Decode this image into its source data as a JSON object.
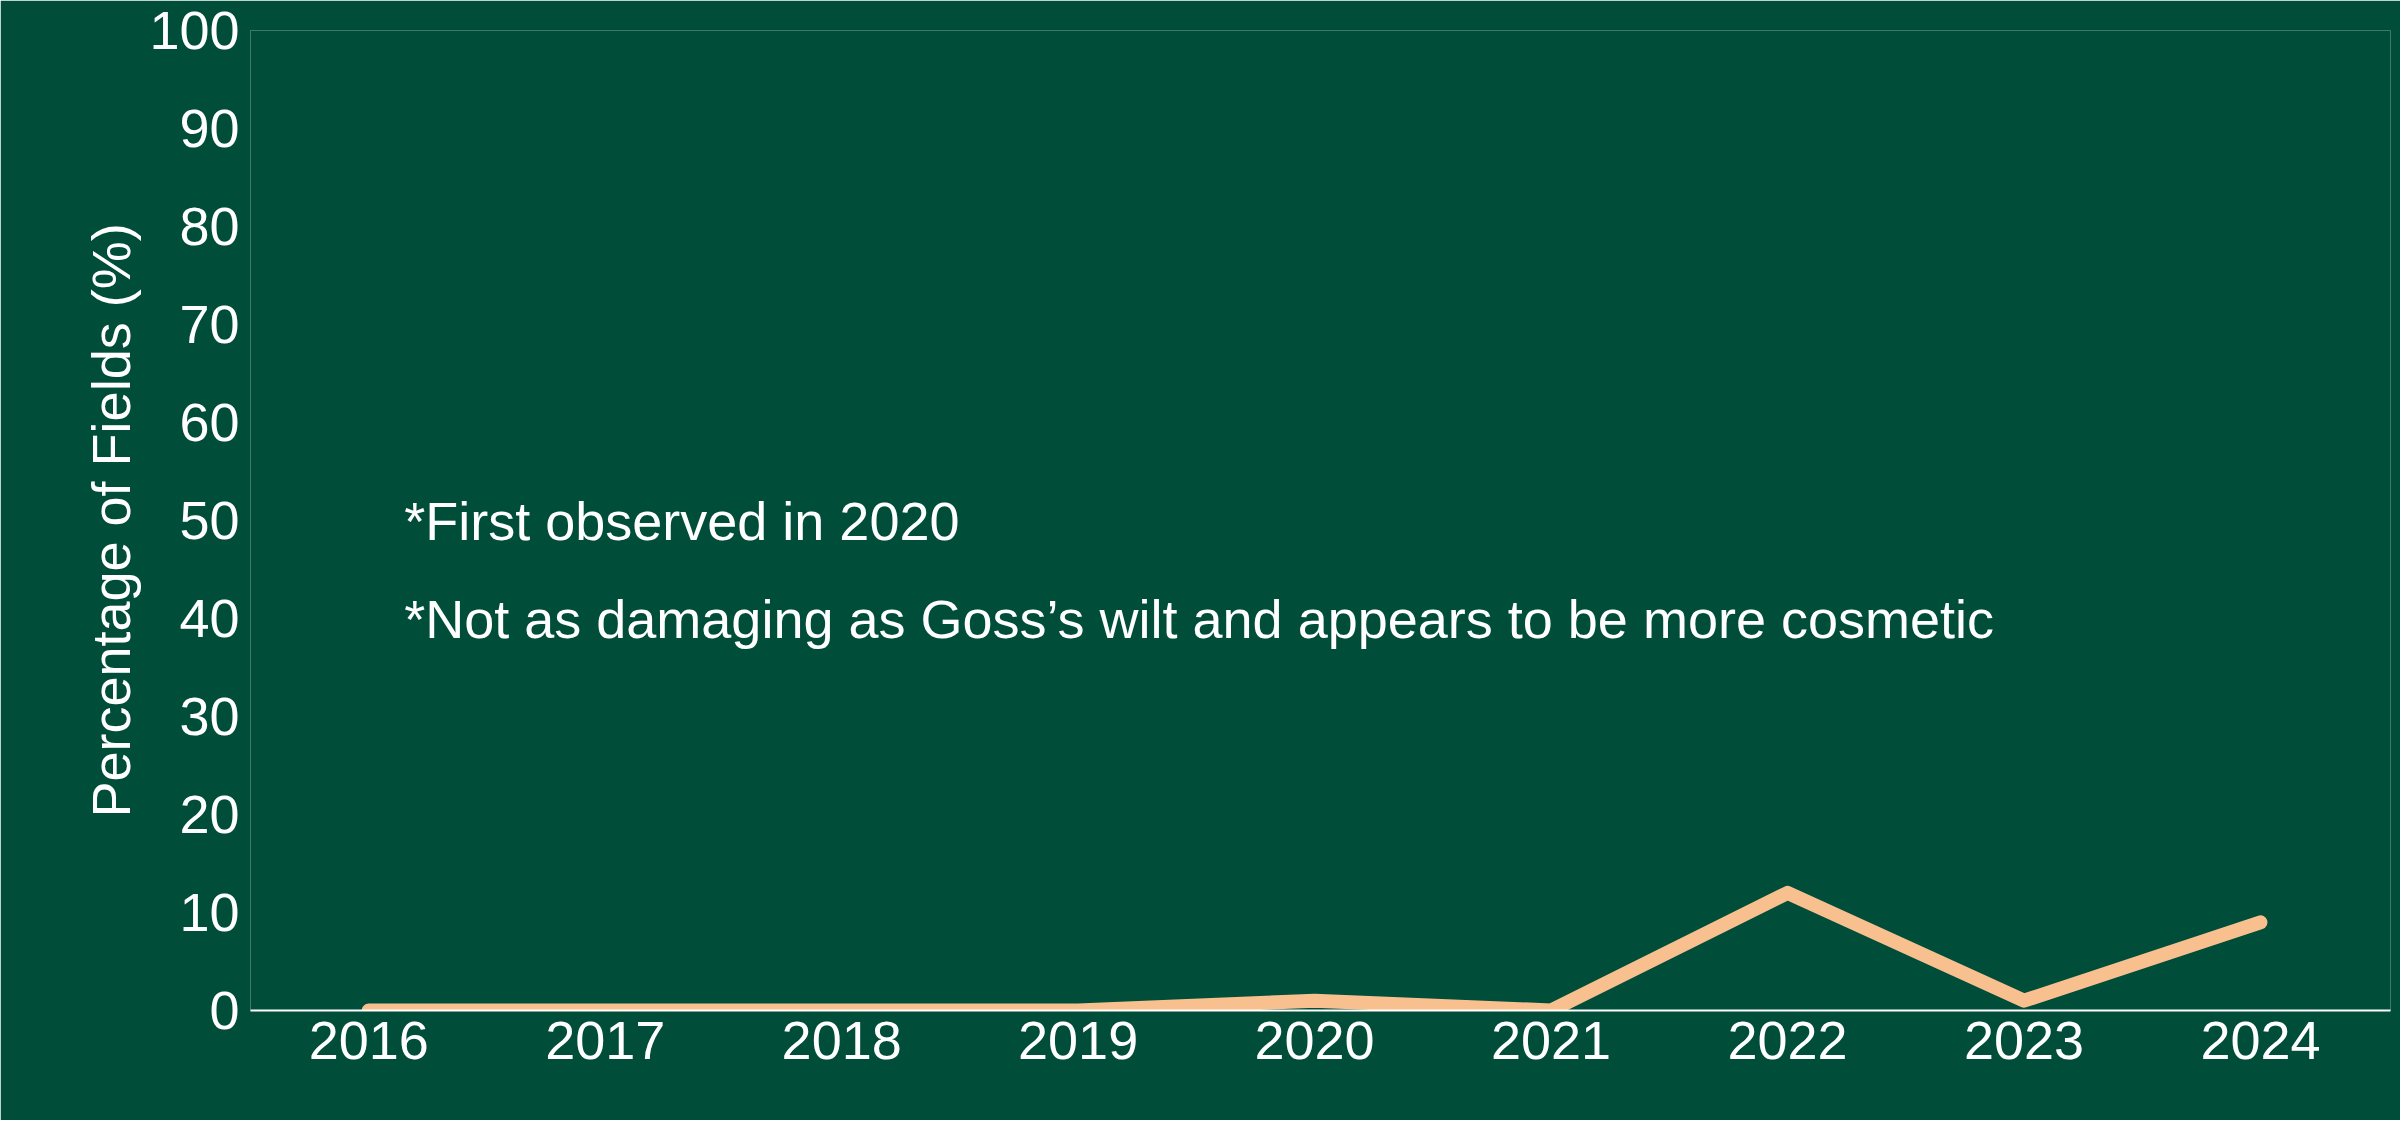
{
  "chart_data": {
    "type": "line",
    "ylabel": "Percentage of Fields (%)",
    "categories": [
      "2016",
      "2017",
      "2018",
      "2019",
      "2020",
      "2021",
      "2022",
      "2023",
      "2024"
    ],
    "series": [
      {
        "color": "#f9c08f",
        "values": [
          0,
          0,
          0,
          0,
          1,
          0,
          12,
          1,
          9
        ]
      }
    ],
    "ylim": [
      0,
      100
    ],
    "yticks": [
      0,
      10,
      20,
      30,
      40,
      50,
      60,
      70,
      80,
      90,
      100
    ],
    "grid": false,
    "marker": "none",
    "line_style": "solid",
    "annotations": [
      "*First observed in 2020",
      "*Not as damaging as Goss’s wilt and appears to be more cosmetic"
    ]
  }
}
